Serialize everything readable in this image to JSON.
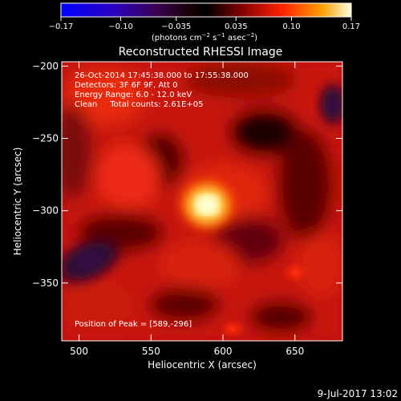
{
  "colorbar": {
    "ticks": [
      -0.17,
      -0.1,
      -0.035,
      0.035,
      0.1,
      0.17
    ],
    "tick_labels": [
      "−0.17",
      "−0.10",
      "−0.035",
      "0.035",
      "0.10",
      "0.17"
    ],
    "units_prefix": "(photons cm",
    "units_exp1": "−2",
    "units_mid": " s",
    "units_exp2": "−1",
    "units_mid2": " asec",
    "units_exp3": "−2",
    "units_suffix": ")"
  },
  "chart_data": {
    "type": "heatmap",
    "title": "Reconstructed RHESSI Image",
    "xlabel": "Heliocentric X (arcsec)",
    "ylabel": "Heliocentric Y (arcsec)",
    "xlim": [
      488,
      683
    ],
    "ylim": [
      -390,
      -197
    ],
    "x_ticks": [
      500,
      550,
      600,
      650
    ],
    "x_tick_labels": [
      "500",
      "550",
      "600",
      "650"
    ],
    "y_ticks": [
      -200,
      -250,
      -300,
      -350
    ],
    "y_tick_labels": [
      "−200",
      "−250",
      "−300",
      "−350"
    ],
    "colorbar_range": [
      -0.17,
      0.17
    ],
    "peak": [
      589,
      -296
    ],
    "annotations": {
      "line1": "26-Oct-2014 17:45:38.000 to 17:55:38.000",
      "line2": "Detectors: 3F 6F 9F, Att 0",
      "line3": "Energy Range: 6.0 - 12.0 keV",
      "line4": "Clean     Total counts: 2.61E+05",
      "peak_text": "Position of Peak = [589,-296]"
    }
  },
  "footer": {
    "timestamp": "9-Jul-2017 13:02"
  }
}
